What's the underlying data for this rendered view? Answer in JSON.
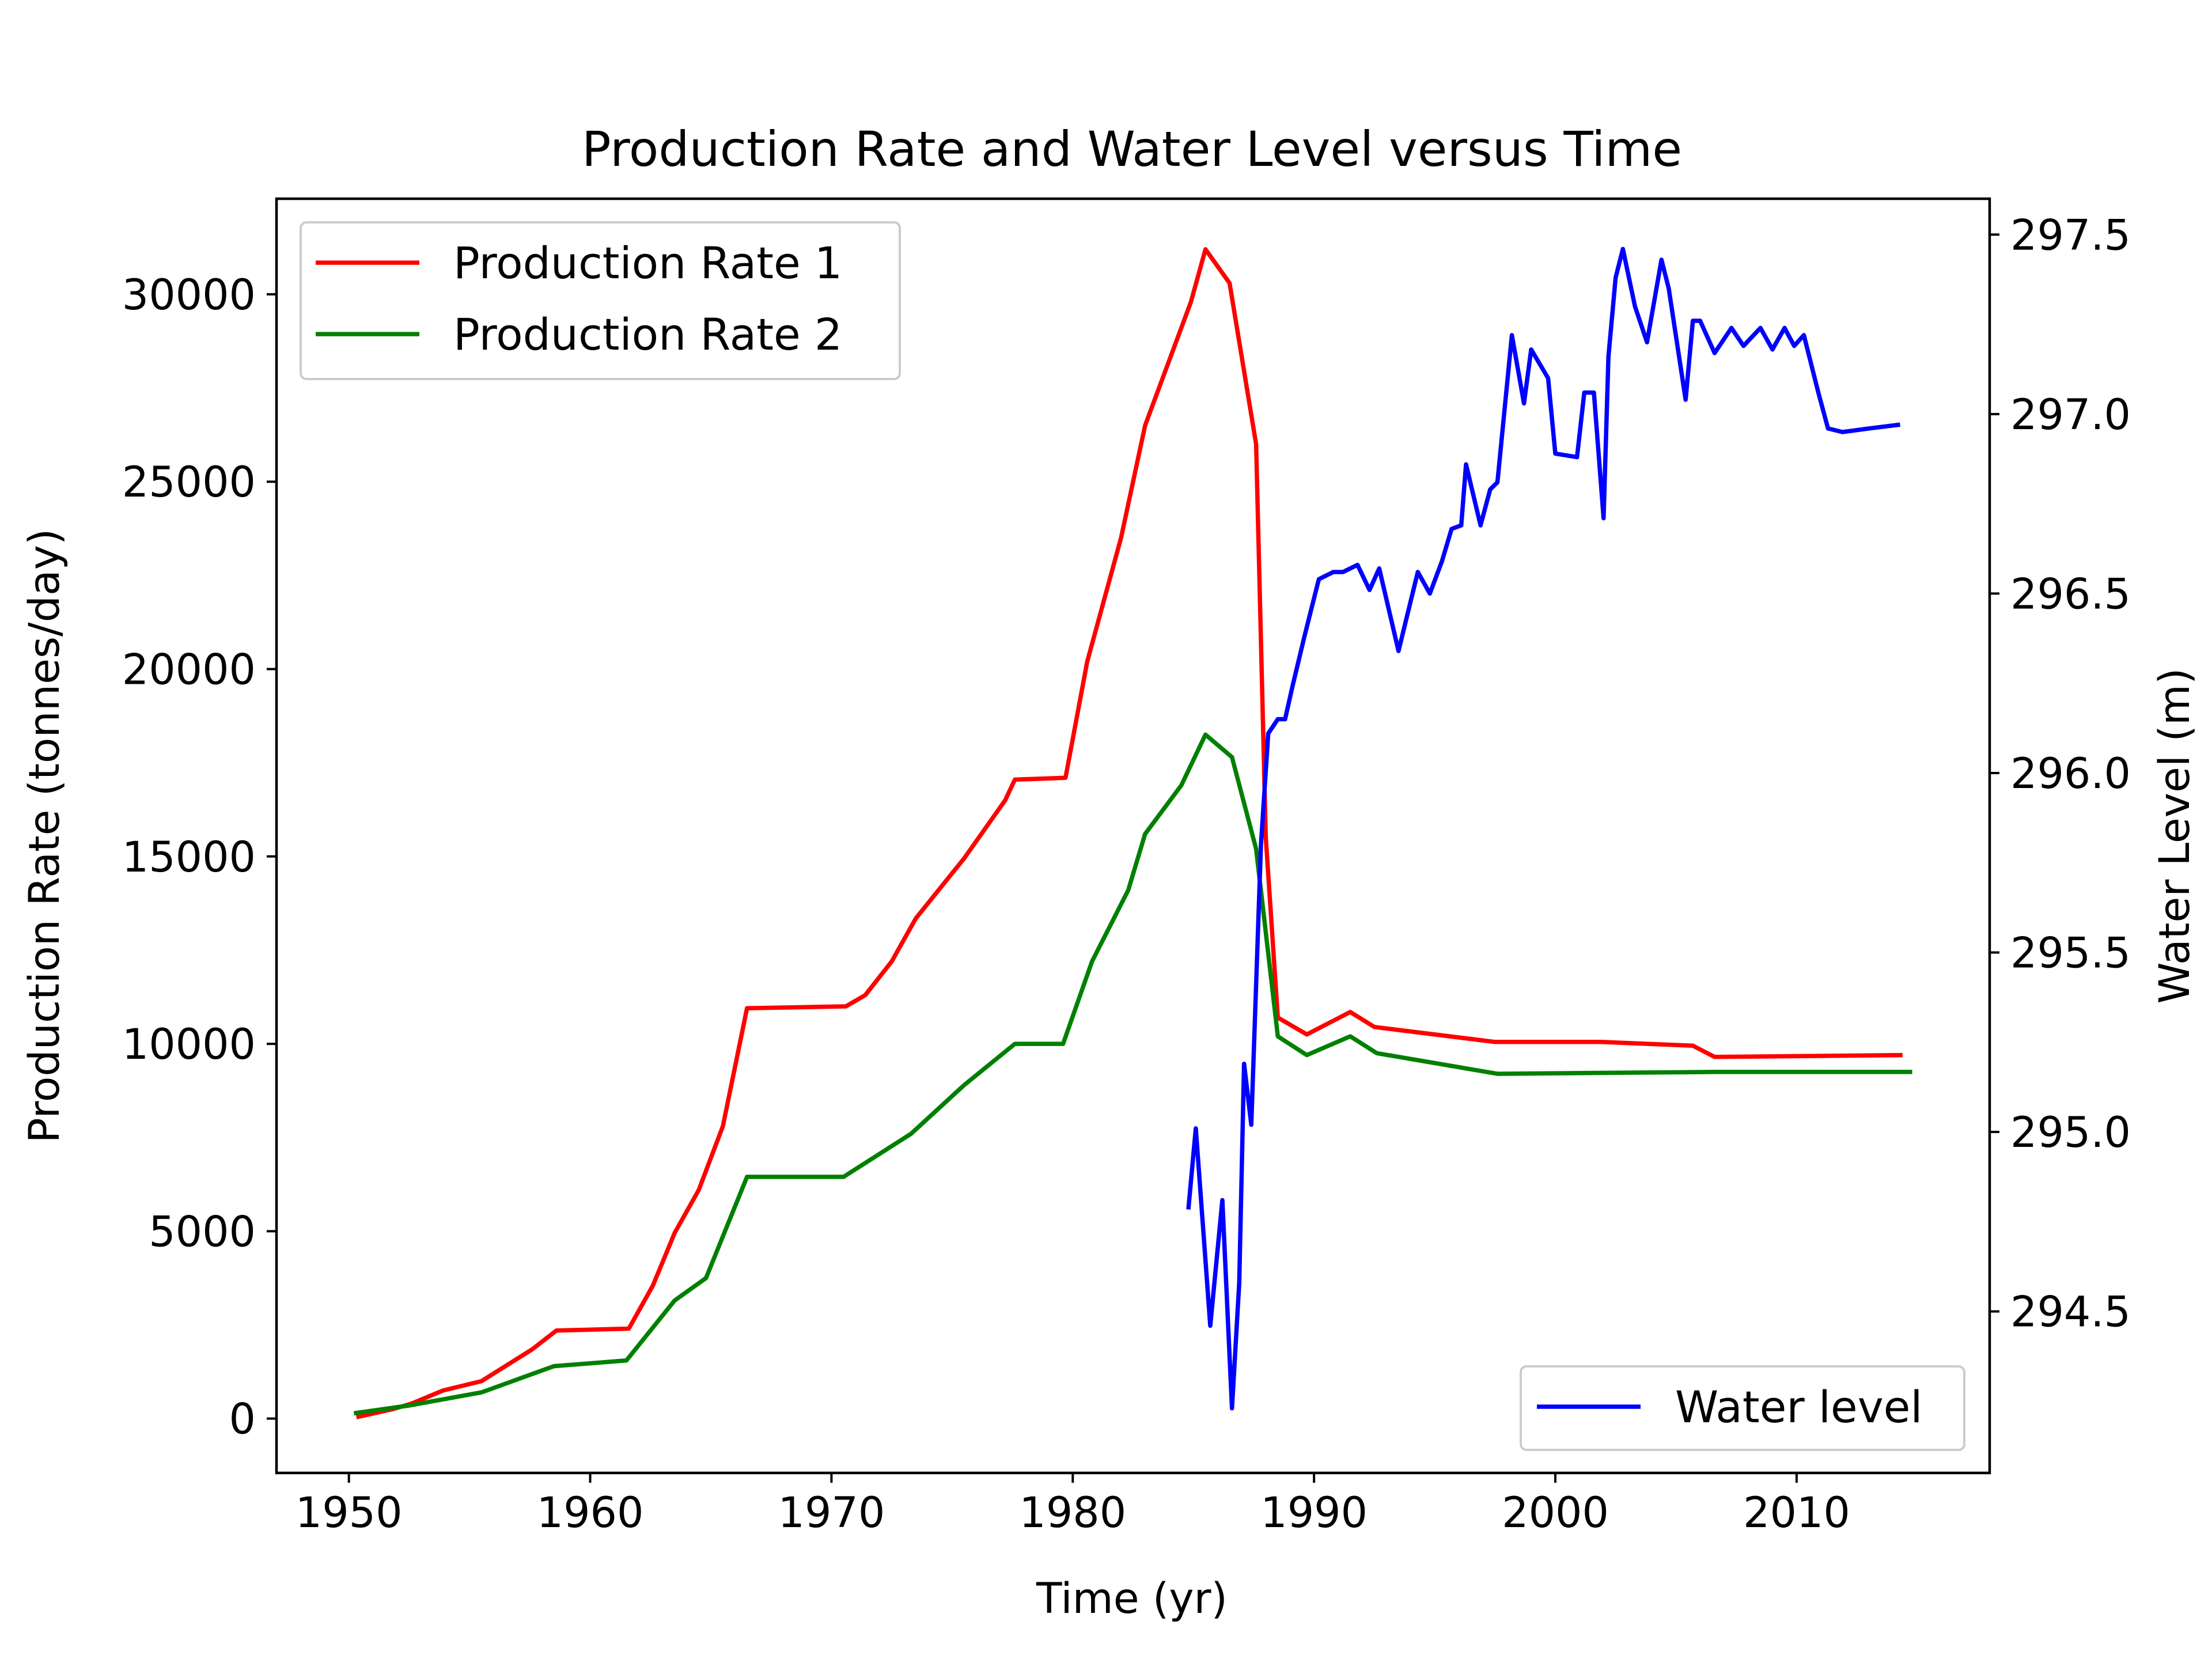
{
  "chart_data": {
    "type": "line",
    "title": "Production Rate and Water Level versus Time",
    "xlabel": "Time (yr)",
    "ylabel": "Production Rate (tonnes/day)",
    "ylabel_right": "Water Level (m)",
    "xlim": [
      1947,
      2018
    ],
    "ylim": [
      -1450,
      32550
    ],
    "ylim_right": [
      294.05,
      297.6
    ],
    "x_ticks": [
      1950,
      1960,
      1970,
      1980,
      1990,
      2000,
      2010
    ],
    "x_tick_labels": [
      "1950",
      "1960",
      "1970",
      "1980",
      "1990",
      "2000",
      "2010"
    ],
    "y_ticks": [
      0,
      5000,
      10000,
      15000,
      20000,
      25000,
      30000
    ],
    "y_tick_labels": [
      "0",
      "5000",
      "10000",
      "15000",
      "20000",
      "25000",
      "30000"
    ],
    "y_right_ticks": [
      294.5,
      295.0,
      295.5,
      296.0,
      296.5,
      297.0,
      297.5
    ],
    "y_right_tick_labels": [
      "294.5",
      "295.0",
      "295.5",
      "296.0",
      "296.5",
      "297.0",
      "297.5"
    ],
    "grid": false,
    "legend_left_placement": "upper-left",
    "legend_right_placement": "lower-right",
    "series": [
      {
        "name": "Production Rate 1",
        "axis": "left",
        "color": "#ff0000",
        "x": [
          1950.4,
          1951.8,
          1952.6,
          1953.9,
          1955.5,
          1957.6,
          1958.6,
          1961.6,
          1962.6,
          1963.5,
          1964.5,
          1965.5,
          1966.5,
          1970.6,
          1971.4,
          1972.5,
          1973.5,
          1975.5,
          1977.2,
          1977.6,
          1979.7,
          1980.6,
          1982.0,
          1983.0,
          1984.9,
          1985.5,
          1986.5,
          1987.6,
          1988.0,
          1988.5,
          1989.7,
          1991.5,
          1992.5,
          1997.5,
          2001.9,
          2005.7,
          2006.6,
          2014.3
        ],
        "y": [
          50,
          250,
          400,
          750,
          1000,
          1850,
          2350,
          2400,
          3550,
          4950,
          6100,
          7800,
          10950,
          11000,
          11300,
          12200,
          13350,
          14950,
          16500,
          17050,
          17100,
          20200,
          23500,
          26500,
          29800,
          31200,
          30300,
          26000,
          15500,
          10700,
          10250,
          10850,
          10450,
          10050,
          10050,
          9950,
          9650,
          9700
        ]
      },
      {
        "name": "Production Rate 2",
        "axis": "left",
        "color": "#008000",
        "x": [
          1950.3,
          1952.5,
          1955.5,
          1958.5,
          1961.5,
          1963.5,
          1964.8,
          1966.5,
          1970.5,
          1973.3,
          1975.5,
          1977.6,
          1979.6,
          1980.8,
          1982.3,
          1983.0,
          1984.5,
          1985.5,
          1986.6,
          1987.6,
          1988.5,
          1989.7,
          1991.5,
          1992.6,
          1997.6,
          2006.5,
          2014.7
        ],
        "y": [
          150,
          350,
          700,
          1400,
          1550,
          3150,
          3750,
          6450,
          6450,
          7600,
          8900,
          10000,
          10000,
          12200,
          14100,
          15600,
          16900,
          18250,
          17650,
          15200,
          10200,
          9700,
          10200,
          9750,
          9200,
          9250,
          9250
        ]
      },
      {
        "name": "Water level",
        "axis": "right",
        "color": "#0000ff",
        "x": [
          1984.8,
          1985.1,
          1985.7,
          1986.2,
          1986.6,
          1986.9,
          1987.1,
          1987.4,
          1987.8,
          1988.1,
          1988.5,
          1988.8,
          1989.1,
          1989.6,
          1990.2,
          1990.8,
          1991.2,
          1991.8,
          1992.3,
          1992.7,
          1993.5,
          1994.3,
          1994.8,
          1995.3,
          1995.7,
          1996.1,
          1996.3,
          1996.9,
          1997.3,
          1997.6,
          1998.2,
          1998.7,
          1999.0,
          1999.7,
          2000.0,
          2000.9,
          2001.2,
          2001.6,
          2002.0,
          2002.2,
          2002.5,
          2002.8,
          2003.3,
          2003.8,
          2004.4,
          2004.7,
          2005.4,
          2005.7,
          2006.0,
          2006.6,
          2007.3,
          2007.8,
          2008.5,
          2009.0,
          2009.5,
          2009.9,
          2010.3,
          2010.9,
          2011.3,
          2011.9,
          2013.0,
          2014.2
        ],
        "y": [
          294.79,
          295.01,
          294.46,
          294.81,
          294.23,
          294.58,
          295.19,
          295.02,
          295.8,
          296.11,
          296.15,
          296.15,
          296.24,
          296.38,
          296.54,
          296.56,
          296.56,
          296.58,
          296.51,
          296.57,
          296.34,
          296.56,
          296.5,
          296.59,
          296.68,
          296.69,
          296.86,
          296.69,
          296.79,
          296.81,
          297.22,
          297.03,
          297.18,
          297.1,
          296.89,
          296.88,
          297.06,
          297.06,
          296.71,
          297.16,
          297.38,
          297.46,
          297.3,
          297.2,
          297.43,
          297.35,
          297.04,
          297.26,
          297.26,
          297.17,
          297.24,
          297.19,
          297.24,
          297.18,
          297.24,
          297.19,
          297.22,
          297.06,
          296.96,
          296.95,
          296.96,
          296.97
        ]
      }
    ]
  }
}
